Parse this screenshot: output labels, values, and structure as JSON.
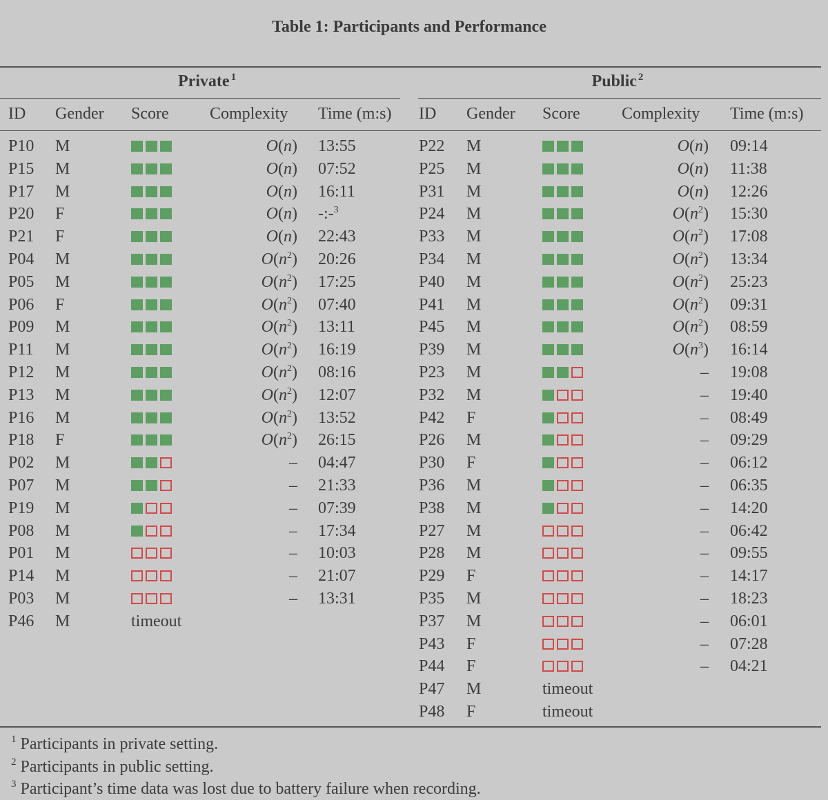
{
  "title": "Table 1: Participants and Performance",
  "groups": {
    "private": {
      "label": "Private",
      "note": "1"
    },
    "public": {
      "label": "Public",
      "note": "2"
    }
  },
  "headers": {
    "id": "ID",
    "gender": "Gender",
    "score": "Score",
    "complexity": "Complexity",
    "time": "Time (m:s)"
  },
  "private_rows": [
    {
      "id": "P10",
      "gender": "M",
      "score": 3,
      "complexity": "O(n)",
      "time": "13:55"
    },
    {
      "id": "P15",
      "gender": "M",
      "score": 3,
      "complexity": "O(n)",
      "time": "07:52"
    },
    {
      "id": "P17",
      "gender": "M",
      "score": 3,
      "complexity": "O(n)",
      "time": "16:11"
    },
    {
      "id": "P20",
      "gender": "F",
      "score": 3,
      "complexity": "O(n)",
      "time": "-:-",
      "time_note": "3"
    },
    {
      "id": "P21",
      "gender": "F",
      "score": 3,
      "complexity": "O(n)",
      "time": "22:43"
    },
    {
      "id": "P04",
      "gender": "M",
      "score": 3,
      "complexity": "O(n2)",
      "time": "20:26"
    },
    {
      "id": "P05",
      "gender": "M",
      "score": 3,
      "complexity": "O(n2)",
      "time": "17:25"
    },
    {
      "id": "P06",
      "gender": "F",
      "score": 3,
      "complexity": "O(n2)",
      "time": "07:40"
    },
    {
      "id": "P09",
      "gender": "M",
      "score": 3,
      "complexity": "O(n2)",
      "time": "13:11"
    },
    {
      "id": "P11",
      "gender": "M",
      "score": 3,
      "complexity": "O(n2)",
      "time": "16:19"
    },
    {
      "id": "P12",
      "gender": "M",
      "score": 3,
      "complexity": "O(n2)",
      "time": "08:16"
    },
    {
      "id": "P13",
      "gender": "M",
      "score": 3,
      "complexity": "O(n2)",
      "time": "12:07"
    },
    {
      "id": "P16",
      "gender": "M",
      "score": 3,
      "complexity": "O(n2)",
      "time": "13:52"
    },
    {
      "id": "P18",
      "gender": "F",
      "score": 3,
      "complexity": "O(n2)",
      "time": "26:15"
    },
    {
      "id": "P02",
      "gender": "M",
      "score": 2,
      "complexity": "–",
      "time": "04:47"
    },
    {
      "id": "P07",
      "gender": "M",
      "score": 2,
      "complexity": "–",
      "time": "21:33"
    },
    {
      "id": "P19",
      "gender": "M",
      "score": 1,
      "complexity": "–",
      "time": "07:39"
    },
    {
      "id": "P08",
      "gender": "M",
      "score": 1,
      "complexity": "–",
      "time": "17:34"
    },
    {
      "id": "P01",
      "gender": "M",
      "score": 0,
      "complexity": "–",
      "time": "10:03"
    },
    {
      "id": "P14",
      "gender": "M",
      "score": 0,
      "complexity": "–",
      "time": "21:07"
    },
    {
      "id": "P03",
      "gender": "M",
      "score": 0,
      "complexity": "–",
      "time": "13:31"
    },
    {
      "id": "P46",
      "gender": "M",
      "score": "timeout",
      "complexity": "",
      "time": ""
    }
  ],
  "public_rows": [
    {
      "id": "P22",
      "gender": "M",
      "score": 3,
      "complexity": "O(n)",
      "time": "09:14"
    },
    {
      "id": "P25",
      "gender": "M",
      "score": 3,
      "complexity": "O(n)",
      "time": "11:38"
    },
    {
      "id": "P31",
      "gender": "M",
      "score": 3,
      "complexity": "O(n)",
      "time": "12:26"
    },
    {
      "id": "P24",
      "gender": "M",
      "score": 3,
      "complexity": "O(n2)",
      "time": "15:30"
    },
    {
      "id": "P33",
      "gender": "M",
      "score": 3,
      "complexity": "O(n2)",
      "time": "17:08"
    },
    {
      "id": "P34",
      "gender": "M",
      "score": 3,
      "complexity": "O(n2)",
      "time": "13:34"
    },
    {
      "id": "P40",
      "gender": "M",
      "score": 3,
      "complexity": "O(n2)",
      "time": "25:23"
    },
    {
      "id": "P41",
      "gender": "M",
      "score": 3,
      "complexity": "O(n2)",
      "time": "09:31"
    },
    {
      "id": "P45",
      "gender": "M",
      "score": 3,
      "complexity": "O(n2)",
      "time": "08:59"
    },
    {
      "id": "P39",
      "gender": "M",
      "score": 3,
      "complexity": "O(n3)",
      "time": "16:14"
    },
    {
      "id": "P23",
      "gender": "M",
      "score": 2,
      "complexity": "–",
      "time": "19:08"
    },
    {
      "id": "P32",
      "gender": "M",
      "score": 1,
      "complexity": "–",
      "time": "19:40"
    },
    {
      "id": "P42",
      "gender": "F",
      "score": 1,
      "complexity": "–",
      "time": "08:49"
    },
    {
      "id": "P26",
      "gender": "M",
      "score": 1,
      "complexity": "–",
      "time": "09:29"
    },
    {
      "id": "P30",
      "gender": "F",
      "score": 1,
      "complexity": "–",
      "time": "06:12"
    },
    {
      "id": "P36",
      "gender": "M",
      "score": 1,
      "complexity": "–",
      "time": "06:35"
    },
    {
      "id": "P38",
      "gender": "M",
      "score": 1,
      "complexity": "–",
      "time": "14:20"
    },
    {
      "id": "P27",
      "gender": "M",
      "score": 0,
      "complexity": "–",
      "time": "06:42"
    },
    {
      "id": "P28",
      "gender": "M",
      "score": 0,
      "complexity": "–",
      "time": "09:55"
    },
    {
      "id": "P29",
      "gender": "F",
      "score": 0,
      "complexity": "–",
      "time": "14:17"
    },
    {
      "id": "P35",
      "gender": "M",
      "score": 0,
      "complexity": "–",
      "time": "18:23"
    },
    {
      "id": "P37",
      "gender": "M",
      "score": 0,
      "complexity": "–",
      "time": "06:01"
    },
    {
      "id": "P43",
      "gender": "F",
      "score": 0,
      "complexity": "–",
      "time": "07:28"
    },
    {
      "id": "P44",
      "gender": "F",
      "score": 0,
      "complexity": "–",
      "time": "04:21"
    },
    {
      "id": "P47",
      "gender": "M",
      "score": "timeout",
      "complexity": "",
      "time": ""
    },
    {
      "id": "P48",
      "gender": "F",
      "score": "timeout",
      "complexity": "",
      "time": ""
    }
  ],
  "footnotes": [
    {
      "mark": "1",
      "text": "Participants in private setting."
    },
    {
      "mark": "2",
      "text": "Participants in public setting."
    },
    {
      "mark": "3",
      "text": "Participant’s time data was lost due to battery failure when recording."
    }
  ],
  "colors": {
    "score_filled": "#5e9e63",
    "score_empty_border": "#d04a4a"
  }
}
